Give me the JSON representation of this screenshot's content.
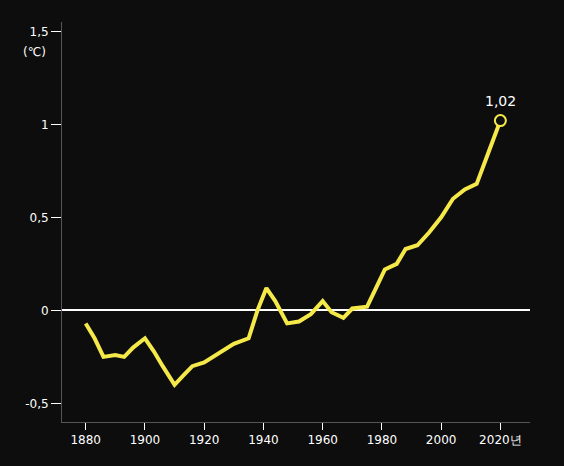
{
  "chart_data": {
    "type": "line",
    "y_label": "(℃)",
    "x": [
      1880,
      1883,
      1886,
      1890,
      1893,
      1896,
      1900,
      1903,
      1906,
      1910,
      1913,
      1916,
      1920,
      1925,
      1930,
      1935,
      1938,
      1941,
      1944,
      1948,
      1952,
      1956,
      1960,
      1963,
      1967,
      1970,
      1975,
      1978,
      1981,
      1985,
      1988,
      1992,
      1996,
      2000,
      2004,
      2008,
      2012,
      2016,
      2020
    ],
    "values": [
      -0.07,
      -0.15,
      -0.25,
      -0.24,
      -0.25,
      -0.2,
      -0.15,
      -0.22,
      -0.3,
      -0.4,
      -0.35,
      -0.3,
      -0.28,
      -0.23,
      -0.18,
      -0.15,
      0.0,
      0.12,
      0.05,
      -0.07,
      -0.06,
      -0.02,
      0.05,
      -0.01,
      -0.04,
      0.01,
      0.02,
      0.12,
      0.22,
      0.25,
      0.33,
      0.35,
      0.42,
      0.5,
      0.6,
      0.65,
      0.68,
      0.85,
      1.02
    ],
    "color": "#f5e94a",
    "xlim": [
      1872,
      2030
    ],
    "ylim": [
      -0.6,
      1.55
    ],
    "xticks": [
      1880,
      1900,
      1920,
      1940,
      1960,
      1980,
      2000,
      {
        "value": 2020,
        "label": "2020년"
      }
    ],
    "yticks": [
      {
        "value": -0.5,
        "label": "-0,5"
      },
      0,
      {
        "value": 0.5,
        "label": "0,5"
      },
      1,
      {
        "value": 1.5,
        "label": "1,5"
      }
    ],
    "grid": false,
    "annotations": [
      {
        "x": 2020,
        "y": 1.02,
        "text": "1,02"
      }
    ]
  }
}
